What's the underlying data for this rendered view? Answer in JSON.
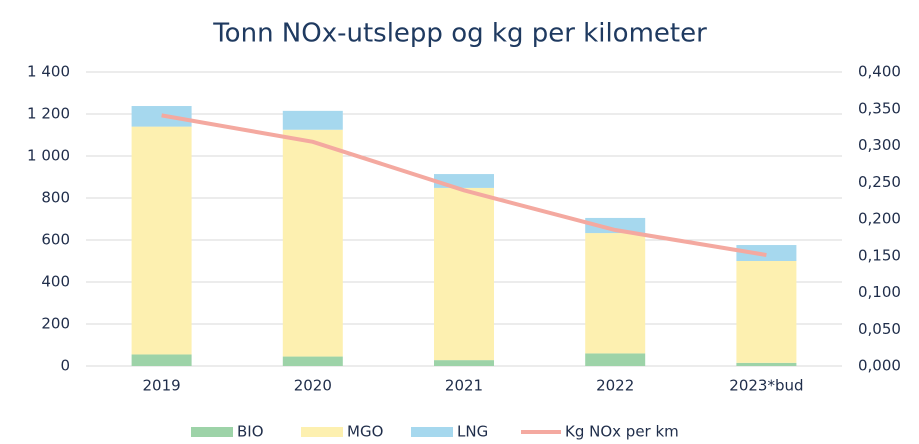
{
  "chart_data": {
    "type": "bar",
    "title": "Tonn NOx-utslepp og kg per kilometer",
    "categories": [
      "2019",
      "2020",
      "2021",
      "2022",
      "2023*bud"
    ],
    "series": [
      {
        "name": "BIO",
        "color": "#9dd3a8",
        "values": [
          55,
          45,
          28,
          60,
          15
        ]
      },
      {
        "name": "MGO",
        "color": "#fdf0b0",
        "values": [
          1085,
          1080,
          820,
          573,
          485
        ]
      },
      {
        "name": "LNG",
        "color": "#a6d8ee",
        "values": [
          98,
          90,
          66,
          72,
          76
        ]
      },
      {
        "name": "Kg NOx per km",
        "color": "#f4a9a0",
        "type": "line",
        "axis": "y2",
        "values": [
          0.341,
          0.305,
          0.239,
          0.185,
          0.151
        ]
      }
    ],
    "stacked": true,
    "ylim": [
      0,
      1400
    ],
    "yticks": [
      0,
      200,
      400,
      600,
      800,
      {
        "value": 1000,
        "label": "1 000"
      },
      {
        "value": 1200,
        "label": "1 200"
      },
      {
        "value": 1400,
        "label": "1 400"
      }
    ],
    "y2lim": [
      0,
      0.4
    ],
    "y2ticks": [
      {
        "value": 0,
        "label": "0,000"
      },
      {
        "value": 0.05,
        "label": "0,050"
      },
      {
        "value": 0.1,
        "label": "0,100"
      },
      {
        "value": 0.15,
        "label": "0,150"
      },
      {
        "value": 0.2,
        "label": "0,200"
      },
      {
        "value": 0.25,
        "label": "0,250"
      },
      {
        "value": 0.3,
        "label": "0,300"
      },
      {
        "value": 0.35,
        "label": "0,350"
      },
      {
        "value": 0.4,
        "label": "0,400"
      }
    ],
    "grid": true,
    "legend": "bottom"
  }
}
